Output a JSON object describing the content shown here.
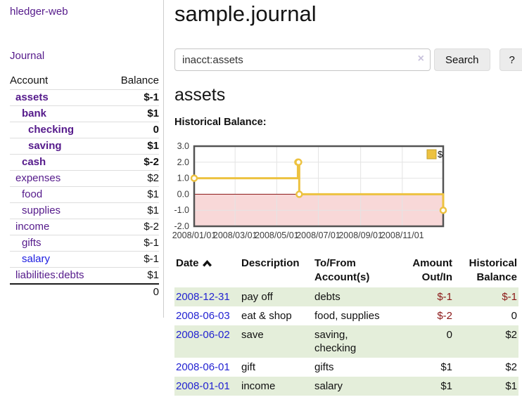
{
  "colors": {
    "link_visited": "#551a8b",
    "link_unvisited": "#1b1be0",
    "date_link": "#2323d2",
    "negative_strong": "#8b1717",
    "negative_muted": "#b37474",
    "register_row_green": "#e4eeda",
    "chart_series": "#edc240",
    "chart_negative_region": "#f8d8d8",
    "chart_zero_line": "#8b1414",
    "chart_border": "#545454"
  },
  "sidebar": {
    "app_title": "hledger-web",
    "nav": {
      "journal": "Journal"
    },
    "accounts": {
      "col_account": "Account",
      "col_balance": "Balance",
      "rows": [
        {
          "account": "assets",
          "depth": 1,
          "bold": true,
          "balance": "$-1",
          "negative": true
        },
        {
          "account": "bank",
          "depth": 2,
          "bold": true,
          "balance": "$1",
          "negative": false
        },
        {
          "account": "checking",
          "depth": 3,
          "bold": true,
          "balance": "0",
          "negative": false
        },
        {
          "account": "saving",
          "depth": 3,
          "bold": true,
          "balance": "$1",
          "negative": false
        },
        {
          "account": "cash",
          "depth": 2,
          "bold": true,
          "balance": "$-2",
          "negative": true
        },
        {
          "account": "expenses",
          "depth": 1,
          "bold": false,
          "balance": "$2",
          "negative": false
        },
        {
          "account": "food",
          "depth": 2,
          "bold": false,
          "balance": "$1",
          "negative": false
        },
        {
          "account": "supplies",
          "depth": 2,
          "bold": false,
          "balance": "$1",
          "negative": false
        },
        {
          "account": "income",
          "depth": 1,
          "bold": false,
          "balance": "$-2",
          "negative": true
        },
        {
          "account": "gifts",
          "depth": 2,
          "bold": false,
          "balance": "$-1",
          "negative": true
        },
        {
          "account": "salary",
          "depth": 2,
          "bold": false,
          "balance": "$-1",
          "negative": true,
          "link_state": "unvisited"
        },
        {
          "account": "liabilities:debts",
          "depth": 1,
          "bold": false,
          "balance": "$1",
          "negative": false
        }
      ],
      "total": "0"
    }
  },
  "main": {
    "title": "sample.journal",
    "search": {
      "value": "inacct:assets",
      "clear_icon": "×",
      "search_button": "Search",
      "help_button": "?"
    },
    "account_heading": "assets",
    "chart_label": "Historical Balance:",
    "register": {
      "headers": {
        "date": "Date",
        "sort_icon": "caret-up",
        "description": "Description",
        "accounts": "To/From\nAccount(s)",
        "amount": "Amount\nOut/In",
        "balance": "Historical\nBalance"
      },
      "rows": [
        {
          "date": "2008-12-31",
          "description": "pay off",
          "accounts": "debts",
          "amount": "$-1",
          "balance": "$-1"
        },
        {
          "date": "2008-06-03",
          "description": "eat & shop",
          "accounts": "food, supplies",
          "amount": "$-2",
          "balance": "0"
        },
        {
          "date": "2008-06-02",
          "description": "save",
          "accounts": "saving,\nchecking",
          "amount": "0",
          "balance": "$2"
        },
        {
          "date": "2008-06-01",
          "description": "gift",
          "accounts": "gifts",
          "amount": "$1",
          "balance": "$2"
        },
        {
          "date": "2008-01-01",
          "description": "income",
          "accounts": "salary",
          "amount": "$1",
          "balance": "$1"
        }
      ]
    }
  },
  "chart_data": {
    "type": "line",
    "title": "Historical Balance",
    "step": true,
    "series": [
      {
        "name": "$",
        "color": "#edc240",
        "points": [
          [
            "2008-01-01",
            1
          ],
          [
            "2008-06-01",
            2
          ],
          [
            "2008-06-02",
            2
          ],
          [
            "2008-06-03",
            0
          ],
          [
            "2008-12-31",
            -1
          ]
        ]
      }
    ],
    "x_range": [
      "2008-01-01",
      "2008-12-31"
    ],
    "x_ticks": [
      "2008/01/01",
      "2008/03/01",
      "2008/05/01",
      "2008/07/01",
      "2008/09/01",
      "2008/11/01"
    ],
    "ylim": [
      -2,
      3
    ],
    "y_ticks": [
      3.0,
      2.0,
      1.0,
      0.0,
      -1.0,
      -2.0
    ],
    "y_tick_labels": [
      "3.0",
      "2.0",
      "1.0",
      "0.0",
      "-1.0",
      "-2.0"
    ],
    "grid": true,
    "legend_position": "top-right",
    "legend_label": "$"
  }
}
